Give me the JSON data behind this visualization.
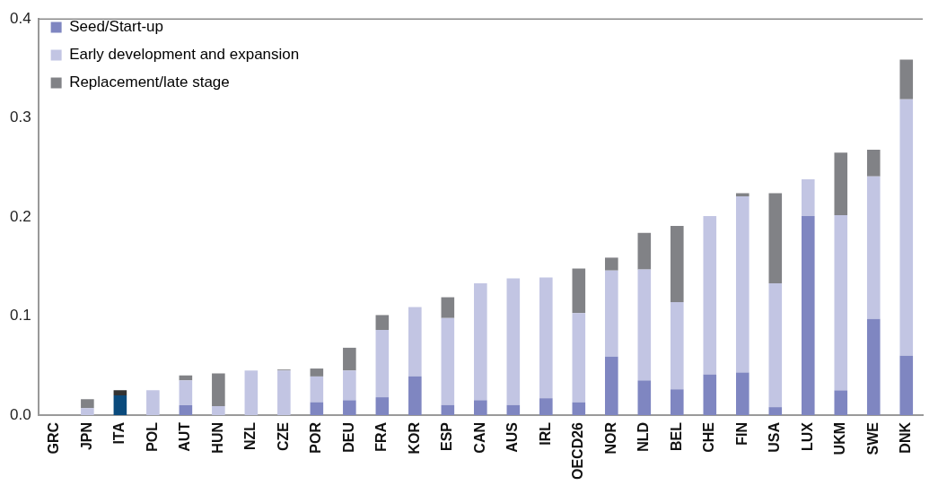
{
  "chart_data": {
    "type": "bar",
    "stacked": true,
    "categories": [
      "GRC",
      "JPN",
      "ITA",
      "POL",
      "AUT",
      "HUN",
      "NZL",
      "CZE",
      "POR",
      "DEU",
      "FRA",
      "KOR",
      "ESP",
      "CAN",
      "AUS",
      "IRL",
      "OECD26",
      "NOR",
      "NLD",
      "BEL",
      "CHE",
      "FIN",
      "USA",
      "LUX",
      "UKM",
      "SWE",
      "DNK"
    ],
    "series": [
      {
        "name": "Seed/Start-up",
        "color": "#7f86c1",
        "colors": [
          "#7f86c1",
          "#7f86c1",
          "#0a4a7c",
          "#7f86c1",
          "#7f86c1",
          "#7f86c1",
          "#7f86c1",
          "#7f86c1",
          "#7f86c1",
          "#7f86c1",
          "#7f86c1",
          "#7f86c1",
          "#7f86c1",
          "#7f86c1",
          "#7f86c1",
          "#7f86c1",
          "#7f86c1",
          "#7f86c1",
          "#7f86c1",
          "#7f86c1",
          "#7f86c1",
          "#7f86c1",
          "#7f86c1",
          "#7f86c1",
          "#7f86c1",
          "#7f86c1",
          "#7f86c1"
        ],
        "values": [
          0,
          0,
          0.02,
          0,
          0.01,
          0,
          0,
          0,
          0.013,
          0.015,
          0.018,
          0.039,
          0.01,
          0.015,
          0.01,
          0.017,
          0.013,
          0.059,
          0.035,
          0.026,
          0.041,
          0.043,
          0.008,
          0.201,
          0.025,
          0.097,
          0.06
        ]
      },
      {
        "name": "Early development and expansion",
        "color": "#c2c5e3",
        "values": [
          null,
          0.007,
          0,
          0.025,
          0.025,
          0.009,
          0.045,
          0.045,
          0.026,
          0.03,
          0.068,
          0.07,
          0.088,
          0.118,
          0.128,
          0.122,
          0.09,
          0.087,
          0.112,
          0.088,
          0.16,
          0.178,
          0.125,
          0.037,
          0.177,
          0.144,
          0.259
        ]
      },
      {
        "name": "Replacement/late stage",
        "color": "#818286",
        "colors": [
          "#818286",
          "#818286",
          "#333333",
          "#818286",
          "#818286",
          "#818286",
          "#818286",
          "#818286",
          "#818286",
          "#818286",
          "#818286",
          "#818286",
          "#818286",
          "#818286",
          "#818286",
          "#818286",
          "#818286",
          "#818286",
          "#818286",
          "#818286",
          "#818286",
          "#818286",
          "#818286",
          "#818286",
          "#818286",
          "#818286",
          "#818286"
        ],
        "values": [
          0,
          0.009,
          0.005,
          0,
          0.005,
          0.033,
          0,
          0.001,
          0.008,
          0.023,
          0.015,
          0,
          0.021,
          0,
          0,
          0,
          0.045,
          0.013,
          0.037,
          0.077,
          0,
          0.003,
          0.091,
          0,
          0.063,
          0.027,
          0.04
        ]
      }
    ],
    "ylim": [
      0,
      0.4
    ],
    "yticks": [
      {
        "value": 0,
        "label": "0.0"
      },
      0.1,
      0.2,
      0.3,
      0.4
    ],
    "grid": false,
    "legend": "top left"
  }
}
